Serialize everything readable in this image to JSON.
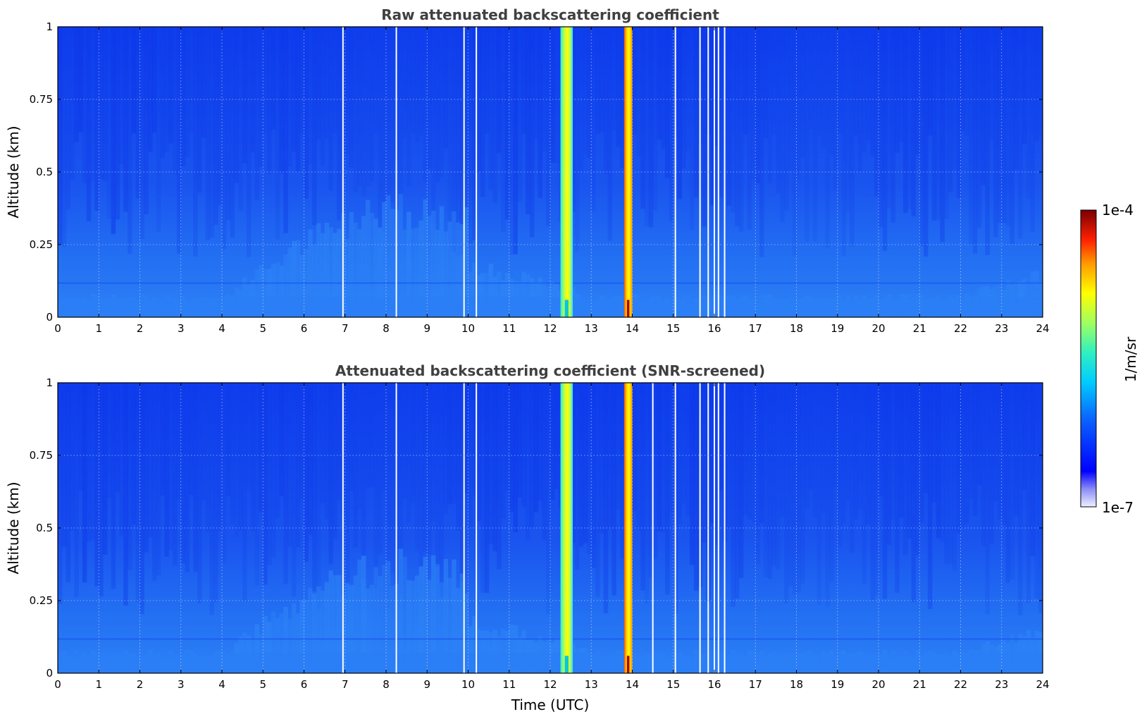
{
  "chart_data": [
    {
      "type": "heatmap",
      "title": "Raw attenuated backscattering coefficient",
      "xlabel": "",
      "ylabel": "Altitude (km)",
      "xlim": [
        0,
        24
      ],
      "ylim": [
        0,
        1
      ],
      "x_ticks": [
        "0",
        "1",
        "2",
        "3",
        "4",
        "5",
        "6",
        "7",
        "8",
        "9",
        "10",
        "11",
        "12",
        "13",
        "14",
        "15",
        "16",
        "17",
        "18",
        "19",
        "20",
        "21",
        "22",
        "23",
        "24"
      ],
      "y_ticks": [
        "0",
        "0.25",
        "0.5",
        "0.75",
        "1"
      ],
      "grid": true,
      "gaps_hours": [
        6.95,
        8.25,
        9.9,
        10.2,
        15.05,
        15.65,
        15.85,
        16.0,
        16.1,
        16.25
      ],
      "bands": [
        {
          "start": 12.25,
          "end": 12.55,
          "level": "high",
          "peak_altitude_km": 0.05
        },
        {
          "start": 13.8,
          "end": 14.0,
          "level": "very-high",
          "peak_altitude_km": 0.05
        }
      ]
    },
    {
      "type": "heatmap",
      "title": "Attenuated backscattering coefficient (SNR-screened)",
      "xlabel": "Time (UTC)",
      "ylabel": "Altitude (km)",
      "xlim": [
        0,
        24
      ],
      "ylim": [
        0,
        1
      ],
      "x_ticks": [
        "0",
        "1",
        "2",
        "3",
        "4",
        "5",
        "6",
        "7",
        "8",
        "9",
        "10",
        "11",
        "12",
        "13",
        "14",
        "15",
        "16",
        "17",
        "18",
        "19",
        "20",
        "21",
        "22",
        "23",
        "24"
      ],
      "y_ticks": [
        "0",
        "0.25",
        "0.5",
        "0.75",
        "1"
      ],
      "grid": true,
      "gaps_hours": [
        6.95,
        8.25,
        9.9,
        10.2,
        14.5,
        15.05,
        15.65,
        15.85,
        16.0,
        16.1,
        16.25
      ],
      "bands": [
        {
          "start": 12.25,
          "end": 12.55,
          "level": "high",
          "peak_altitude_km": 0.05
        },
        {
          "start": 13.8,
          "end": 14.0,
          "level": "very-high",
          "peak_altitude_km": 0.05
        }
      ]
    }
  ],
  "colorbar": {
    "label": "1/m/sr",
    "max_label": "1e-4",
    "min_label": "1e-7",
    "colormap": "jet"
  },
  "colors": {
    "background_blue": "#1a55ef",
    "low_blue": "#2d7df6",
    "dark_blue": "#0b2ce8",
    "title_gray": "#404040"
  }
}
